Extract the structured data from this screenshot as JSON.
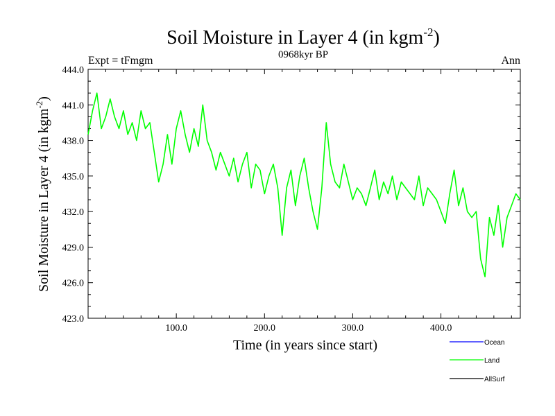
{
  "chart_data": {
    "type": "line",
    "title": "Soil Moisture in Layer 4 (in kgm",
    "title_sup": "-2",
    "title_end": ")",
    "subtitle": "0968kyr BP",
    "left_label": "Expt = tFmgm",
    "right_label": "Ann",
    "xlabel": "Time (in years since start)",
    "ylabel": "Soil Moisture in Layer 4 (in kgm",
    "ylabel_sup": "-2",
    "ylabel_end": ")",
    "xlim": [
      0,
      490
    ],
    "ylim": [
      423,
      444
    ],
    "x_ticks": [
      100,
      200,
      300,
      400
    ],
    "x_tick_labels": [
      "100.0",
      "200.0",
      "300.0",
      "400.0"
    ],
    "y_ticks": [
      423,
      426,
      429,
      432,
      435,
      438,
      441,
      444
    ],
    "y_tick_labels": [
      "423.0",
      "426.0",
      "429.0",
      "432.0",
      "435.0",
      "438.0",
      "441.0",
      "444.0"
    ],
    "legend": [
      {
        "name": "Ocean",
        "color": "#0000ff"
      },
      {
        "name": "Land",
        "color": "#00ff00"
      },
      {
        "name": "AllSurf",
        "color": "#000000"
      }
    ],
    "series": [
      {
        "name": "Land",
        "color": "#00ff00",
        "x": [
          0,
          5,
          10,
          15,
          20,
          25,
          30,
          35,
          40,
          45,
          50,
          55,
          60,
          65,
          70,
          75,
          80,
          85,
          90,
          95,
          100,
          105,
          110,
          115,
          120,
          125,
          130,
          135,
          140,
          145,
          150,
          155,
          160,
          165,
          170,
          175,
          180,
          185,
          190,
          195,
          200,
          205,
          210,
          215,
          220,
          225,
          230,
          235,
          240,
          245,
          250,
          255,
          260,
          265,
          270,
          275,
          280,
          285,
          290,
          295,
          300,
          305,
          310,
          315,
          320,
          325,
          330,
          335,
          340,
          345,
          350,
          355,
          360,
          365,
          370,
          375,
          380,
          385,
          390,
          395,
          400,
          405,
          410,
          415,
          420,
          425,
          430,
          435,
          440,
          445,
          450,
          455,
          460,
          465,
          470,
          475,
          480,
          485,
          490
        ],
        "values": [
          438.5,
          440.5,
          442.0,
          439.0,
          440.0,
          441.5,
          440.0,
          439.0,
          440.5,
          438.5,
          439.5,
          438.0,
          440.5,
          439.0,
          439.5,
          437.0,
          434.5,
          436.0,
          438.5,
          436.0,
          439.0,
          440.5,
          438.5,
          437.0,
          439.0,
          437.5,
          441.0,
          438.0,
          437.0,
          435.5,
          437.0,
          436.0,
          435.0,
          436.5,
          434.5,
          436.0,
          437.0,
          434.0,
          436.0,
          435.5,
          433.5,
          435.0,
          436.0,
          434.0,
          430.0,
          434.0,
          435.5,
          432.5,
          435.0,
          436.5,
          434.0,
          432.0,
          430.5,
          434.0,
          439.5,
          436.0,
          434.5,
          434.0,
          436.0,
          434.5,
          433.0,
          434.0,
          433.5,
          432.5,
          434.0,
          435.5,
          433.0,
          434.5,
          433.5,
          435.0,
          433.0,
          434.5,
          434.0,
          433.5,
          433.0,
          435.0,
          432.5,
          434.0,
          433.5,
          433.0,
          432.0,
          431.0,
          433.5,
          435.5,
          432.5,
          434.0,
          432.0,
          431.5,
          432.0,
          428.0,
          426.5,
          431.5,
          430.0,
          432.5,
          429.0,
          431.5,
          432.5,
          433.5,
          433.0
        ]
      }
    ]
  }
}
